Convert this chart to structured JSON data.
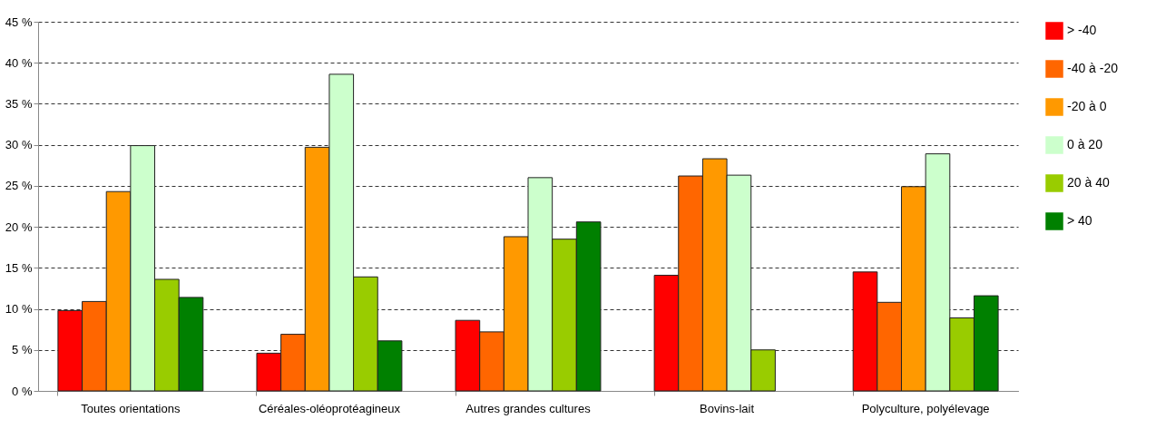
{
  "chart_data": {
    "type": "bar",
    "categories": [
      "Toutes orientations",
      "Céréales-oléoprotéagineux",
      "Autres grandes cultures",
      "Bovins-lait",
      "Polyculture, polyélevage"
    ],
    "series": [
      {
        "name": "> -40",
        "color": "#ff0000",
        "values": [
          9.8,
          4.6,
          8.6,
          14.1,
          14.5
        ]
      },
      {
        "name": "-40 à -20",
        "color": "#ff6600",
        "values": [
          10.9,
          6.9,
          7.2,
          26.2,
          10.8
        ]
      },
      {
        "name": "-20 à 0",
        "color": "#ff9900",
        "values": [
          24.3,
          29.7,
          18.8,
          28.3,
          24.9
        ]
      },
      {
        "name": "0 à 20",
        "color": "#ccffcc",
        "values": [
          29.9,
          38.6,
          26.0,
          26.3,
          28.9
        ]
      },
      {
        "name": "20 à 40",
        "color": "#99cc00",
        "values": [
          13.6,
          13.9,
          18.5,
          5.0,
          8.9
        ]
      },
      {
        "name": "> 40",
        "color": "#008000",
        "values": [
          11.4,
          6.1,
          20.6,
          null,
          11.6
        ]
      }
    ],
    "ylim": [
      0,
      45
    ],
    "yticks": [
      {
        "value": 0,
        "label": "0 %"
      },
      {
        "value": 5,
        "label": "5 %"
      },
      {
        "value": 10,
        "label": "10 %"
      },
      {
        "value": 15,
        "label": "15 %"
      },
      {
        "value": 20,
        "label": "20 %"
      },
      {
        "value": 25,
        "label": "25 %"
      },
      {
        "value": 30,
        "label": "30 %"
      },
      {
        "value": 35,
        "label": "35 %"
      },
      {
        "value": 40,
        "label": "40 %"
      },
      {
        "value": 45,
        "label": "45 %"
      }
    ],
    "grid": "y",
    "legend": "right"
  }
}
